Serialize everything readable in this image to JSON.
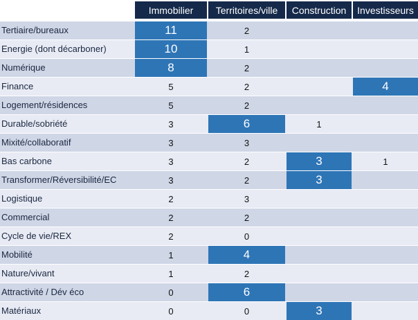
{
  "chart_data": {
    "type": "table",
    "columns": [
      "Immobilier",
      "Territoires/ville",
      "Construction",
      "Investisseurs"
    ],
    "rows": [
      {
        "label": "Tertiaire/bureaux",
        "values": [
          11,
          2,
          null,
          null
        ]
      },
      {
        "label": "Energie (dont décarboner)",
        "values": [
          10,
          1,
          null,
          null
        ]
      },
      {
        "label": "Numérique",
        "values": [
          8,
          2,
          null,
          null
        ]
      },
      {
        "label": "Finance",
        "values": [
          5,
          2,
          null,
          4
        ]
      },
      {
        "label": "Logement/résidences",
        "values": [
          5,
          2,
          null,
          null
        ]
      },
      {
        "label": "Durable/sobriété",
        "values": [
          3,
          6,
          1,
          null
        ]
      },
      {
        "label": "Mixité/collaboratif",
        "values": [
          3,
          3,
          null,
          null
        ]
      },
      {
        "label": "Bas carbone",
        "values": [
          3,
          2,
          3,
          1
        ]
      },
      {
        "label": "Transformer/Réversibilité/EC",
        "values": [
          3,
          2,
          3,
          null
        ]
      },
      {
        "label": "Logistique",
        "values": [
          2,
          3,
          null,
          null
        ]
      },
      {
        "label": "Commercial",
        "values": [
          2,
          2,
          null,
          null
        ]
      },
      {
        "label": "Cycle de vie/REX",
        "values": [
          2,
          0,
          null,
          null
        ]
      },
      {
        "label": "Mobilité",
        "values": [
          1,
          4,
          null,
          null
        ]
      },
      {
        "label": "Nature/vivant",
        "values": [
          1,
          2,
          null,
          null
        ]
      },
      {
        "label": "Attractivité / Dév éco",
        "values": [
          0,
          6,
          null,
          null
        ]
      },
      {
        "label": "Matériaux",
        "values": [
          0,
          0,
          3,
          null
        ]
      }
    ],
    "highlighted": [
      [
        0,
        0
      ],
      [
        1,
        0
      ],
      [
        2,
        0
      ],
      [
        3,
        3
      ],
      [
        5,
        1
      ],
      [
        7,
        2
      ],
      [
        8,
        2
      ],
      [
        12,
        1
      ],
      [
        14,
        1
      ],
      [
        15,
        2
      ]
    ],
    "colors": {
      "header_bg": "#15294a",
      "highlight": "#2e75b6",
      "row_odd": "#cfd6e6",
      "row_even": "#e8ebf4"
    }
  }
}
